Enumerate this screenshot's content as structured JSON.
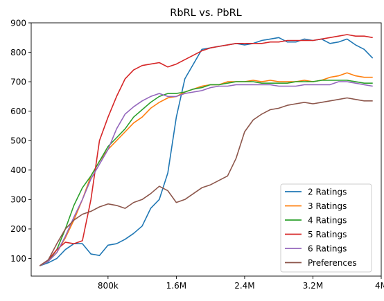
{
  "chart_data": {
    "type": "line",
    "title": "RbRL vs. PbRL",
    "xlabel": "",
    "ylabel": "",
    "xlim": [
      -100000,
      4000000
    ],
    "ylim": [
      40,
      900
    ],
    "xticks": [
      {
        "value": 800000,
        "label": "800k"
      },
      {
        "value": 1600000,
        "label": "1.6M"
      },
      {
        "value": 2400000,
        "label": "2.4M"
      },
      {
        "value": 3200000,
        "label": "3.2M"
      },
      {
        "value": 4000000,
        "label": "4M"
      }
    ],
    "yticks": [
      100,
      200,
      300,
      400,
      500,
      600,
      700,
      800,
      900
    ],
    "grid": false,
    "legend_position": "lower-right",
    "x": [
      0,
      100000,
      200000,
      300000,
      400000,
      500000,
      600000,
      700000,
      800000,
      900000,
      1000000,
      1100000,
      1200000,
      1300000,
      1400000,
      1500000,
      1600000,
      1700000,
      1800000,
      1900000,
      2000000,
      2100000,
      2200000,
      2300000,
      2400000,
      2500000,
      2600000,
      2700000,
      2800000,
      2900000,
      3000000,
      3100000,
      3200000,
      3300000,
      3400000,
      3500000,
      3600000,
      3700000,
      3800000,
      3900000
    ],
    "series": [
      {
        "name": "2 Ratings",
        "color": "#1f77b4",
        "values": [
          75,
          85,
          100,
          130,
          150,
          150,
          115,
          110,
          145,
          150,
          165,
          185,
          210,
          270,
          300,
          390,
          580,
          710,
          760,
          810,
          815,
          820,
          825,
          830,
          825,
          830,
          840,
          845,
          850,
          835,
          835,
          845,
          840,
          845,
          830,
          835,
          845,
          825,
          810,
          780
        ]
      },
      {
        "name": "3 Ratings",
        "color": "#ff7f0e",
        "values": [
          75,
          90,
          120,
          170,
          230,
          300,
          380,
          430,
          470,
          500,
          530,
          560,
          580,
          610,
          630,
          645,
          650,
          665,
          675,
          685,
          690,
          690,
          700,
          700,
          700,
          705,
          700,
          705,
          700,
          700,
          700,
          705,
          700,
          705,
          715,
          720,
          730,
          720,
          715,
          715
        ]
      },
      {
        "name": "4 Ratings",
        "color": "#2ca02c",
        "values": [
          75,
          90,
          130,
          200,
          280,
          340,
          380,
          430,
          480,
          510,
          540,
          580,
          605,
          630,
          650,
          660,
          660,
          665,
          675,
          680,
          690,
          690,
          695,
          700,
          700,
          700,
          695,
          695,
          695,
          695,
          700,
          700,
          700,
          705,
          705,
          705,
          705,
          700,
          695,
          695
        ]
      },
      {
        "name": "5 Ratings",
        "color": "#d62728",
        "values": [
          75,
          95,
          130,
          155,
          150,
          160,
          300,
          500,
          580,
          650,
          710,
          740,
          755,
          760,
          765,
          750,
          760,
          775,
          790,
          805,
          815,
          820,
          825,
          830,
          830,
          830,
          830,
          835,
          835,
          840,
          840,
          840,
          840,
          845,
          850,
          855,
          860,
          855,
          855,
          850
        ]
      },
      {
        "name": "6 Ratings",
        "color": "#9467bd",
        "values": [
          75,
          90,
          120,
          175,
          240,
          300,
          370,
          420,
          470,
          540,
          590,
          615,
          635,
          650,
          660,
          650,
          650,
          660,
          665,
          670,
          680,
          685,
          685,
          690,
          690,
          690,
          690,
          690,
          685,
          685,
          685,
          690,
          690,
          690,
          690,
          700,
          700,
          695,
          690,
          685
        ]
      },
      {
        "name": "Preferences",
        "color": "#8c564b",
        "values": [
          75,
          95,
          150,
          200,
          230,
          250,
          260,
          275,
          285,
          280,
          270,
          290,
          300,
          320,
          345,
          330,
          290,
          300,
          320,
          340,
          350,
          365,
          380,
          440,
          530,
          570,
          590,
          605,
          610,
          620,
          625,
          630,
          625,
          630,
          635,
          640,
          645,
          640,
          635,
          635
        ]
      }
    ]
  }
}
